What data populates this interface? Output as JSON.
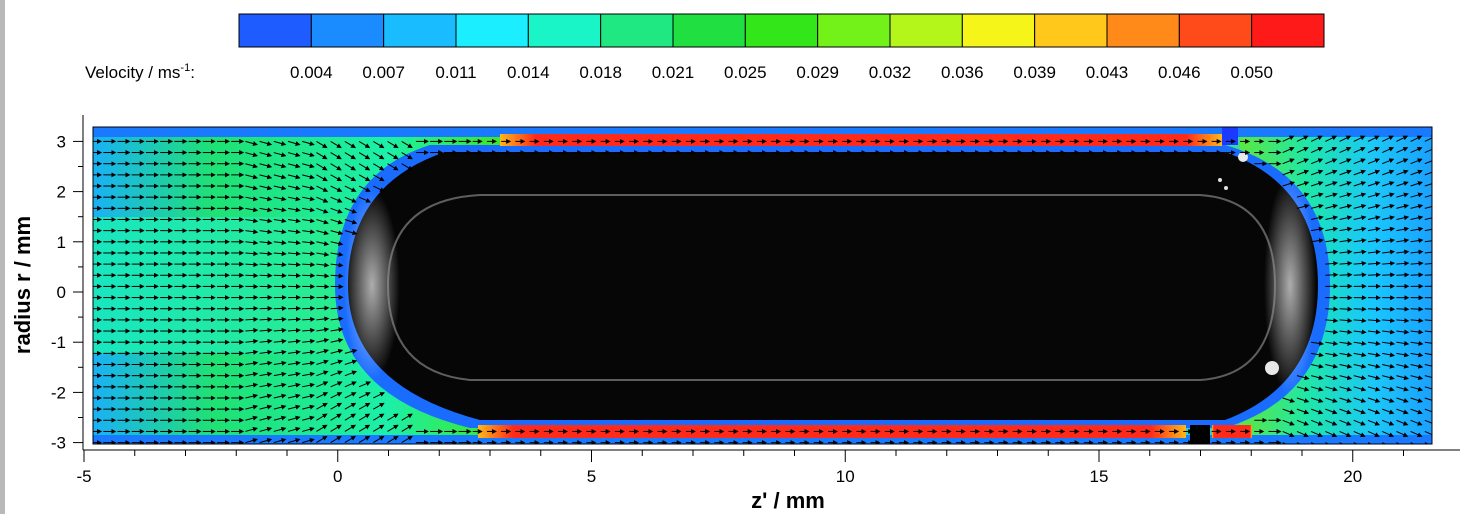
{
  "chart_data": {
    "type": "heatmap",
    "legend": {
      "label_prefix": "Velocity / ms",
      "label_exponent": "-1",
      "label_suffix": ":",
      "ticks": [
        "0.004",
        "0.007",
        "0.011",
        "0.014",
        "0.018",
        "0.021",
        "0.025",
        "0.029",
        "0.032",
        "0.036",
        "0.039",
        "0.043",
        "0.046",
        "0.050"
      ],
      "colors": [
        "#1f5cff",
        "#1a8cff",
        "#19bdff",
        "#1aeeff",
        "#19f5c6",
        "#1fe883",
        "#1fe040",
        "#33e61a",
        "#73f21a",
        "#b4f51a",
        "#f5f51a",
        "#ffc81a",
        "#ff8a1a",
        "#ff4a1a",
        "#ff1a1a"
      ],
      "placement": "top"
    },
    "xlabel": "z' / mm",
    "ylabel": "radius r / mm",
    "xlim": [
      -5,
      21.6
    ],
    "ylim": [
      -3.1,
      3.2
    ],
    "x_ticks": [
      "-5",
      "0",
      "5",
      "10",
      "15",
      "20"
    ],
    "y_ticks": [
      "3",
      "2",
      "1",
      "0",
      "-1",
      "-2",
      "-3"
    ],
    "bubble": {
      "z_start": 0,
      "z_end": 19.3,
      "radius": 2.85
    },
    "field": {
      "velocity_min": 0.004,
      "velocity_max": 0.05,
      "flow_direction": "+z"
    }
  }
}
